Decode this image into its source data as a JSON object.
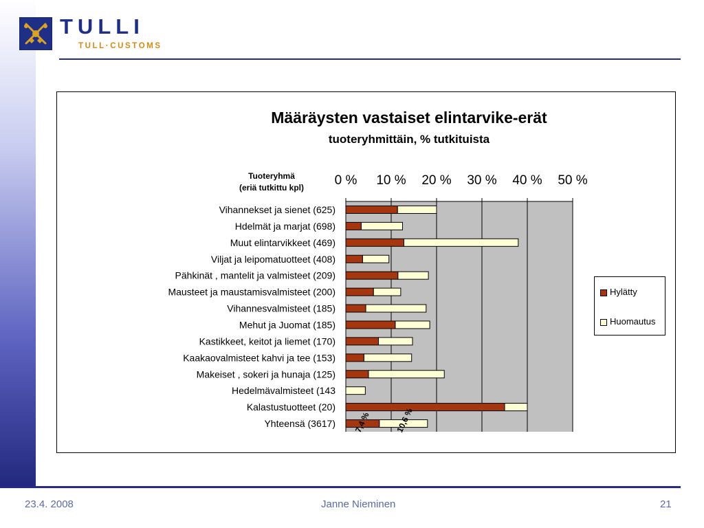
{
  "header": {
    "logo_text": "TULLI",
    "logo_subtext": "TULL·CUSTOMS"
  },
  "footer": {
    "date": "23.4. 2008",
    "author": "Janne Nieminen",
    "page_number": "21"
  },
  "colors": {
    "rejected": "#a43610",
    "remark": "#ffffd6",
    "plot_bg": "#c0c0c0",
    "brand_blue": "#1f2f86",
    "brand_orange": "#cf8a1c"
  },
  "chart_data": {
    "type": "bar",
    "orientation": "horizontal",
    "stacked": true,
    "title": "Määräysten vastaiset elintarvike-erät",
    "subtitle": "tuoteryhmittäin, % tutkituista",
    "category_header_line1": "Tuoteryhmä",
    "category_header_line2": "(eriä tutkittu kpl)",
    "x_ticks": [
      "0 %",
      "10 %",
      "20 %",
      "30 %",
      "40 %",
      "50 %"
    ],
    "xlim": [
      0,
      50
    ],
    "categories": [
      "Vihannekset ja sienet (625)",
      "Hdelmät ja marjat (698)",
      "Muut elintarvikkeet (469)",
      "Viljat ja leipomatuotteet (408)",
      "Pähkinät , mantelit ja valmisteet (209)",
      "Mausteet ja maustamisvalmisteet (200)",
      "Vihannesvalmisteet (185)",
      "Mehut ja Juomat (185)",
      "Kastikkeet, keitot ja liemet (170)",
      "Kaakaovalmisteet kahvi ja tee (153)",
      "Makeiset , sokeri ja hunaja (125)",
      "Hedelmävalmisteet (143",
      "Kalastustuotteet (20)",
      "Yhteensä (3617)"
    ],
    "series": [
      {
        "name": "Hylätty",
        "values": [
          11.4,
          3.4,
          12.8,
          3.7,
          11.5,
          6.1,
          4.4,
          10.9,
          7.2,
          4.0,
          5.0,
          0.0,
          35.0,
          7.4
        ]
      },
      {
        "name": "Huomautus",
        "values": [
          8.6,
          9.1,
          25.2,
          5.8,
          6.7,
          6.0,
          13.3,
          7.6,
          7.5,
          10.5,
          16.7,
          4.3,
          5.0,
          10.6
        ]
      }
    ],
    "data_labels": [
      "7,4 %",
      "10,6 %"
    ],
    "grid": true,
    "legend_position": "right"
  }
}
